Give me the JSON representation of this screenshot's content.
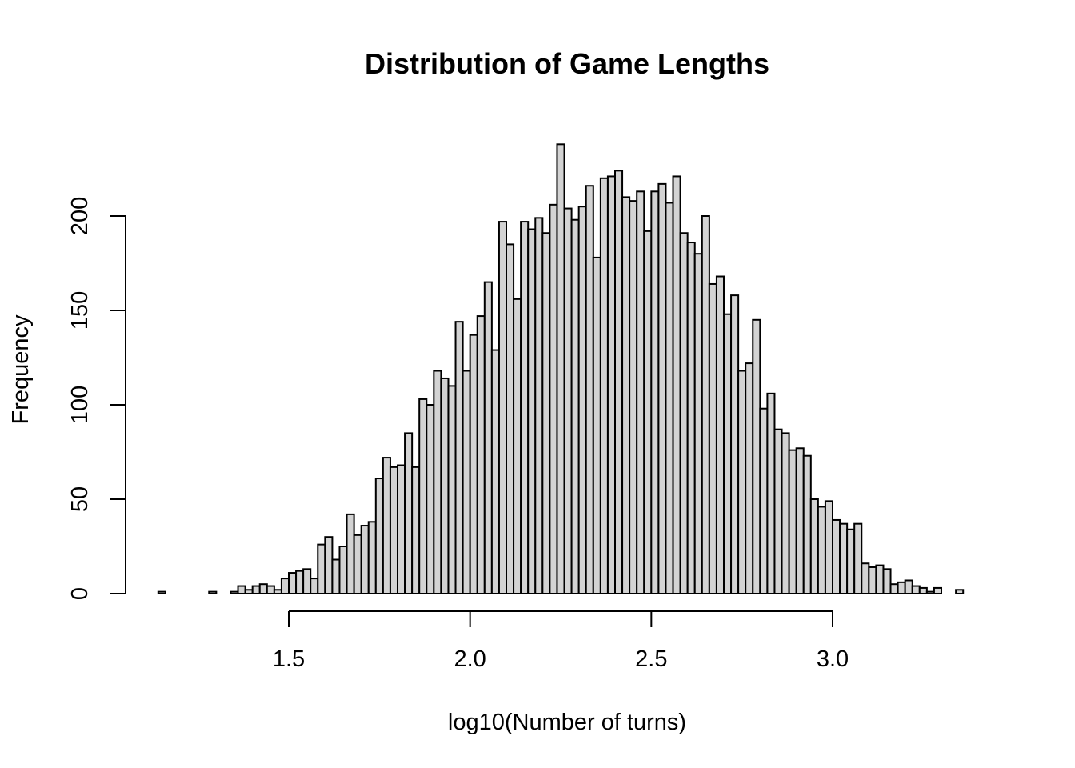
{
  "chart_data": {
    "type": "bar",
    "title": "Distribution of Game Lengths",
    "xlabel": "log10(Number of turns)",
    "ylabel": "Frequency",
    "bar_color": "#d3d3d3",
    "edge_color": "#000000",
    "xlim": [
      1.15,
      3.4
    ],
    "ylim": [
      0,
      240
    ],
    "bin_width": 0.02,
    "x_start": 1.14,
    "x_ticks": [
      "1.5",
      "2.0",
      "2.5",
      "3.0"
    ],
    "y_ticks": [
      "0",
      "50",
      "100",
      "150",
      "200"
    ],
    "values": [
      1,
      0,
      0,
      0,
      0,
      0,
      0,
      1,
      0,
      0,
      1,
      4,
      2,
      4,
      5,
      4,
      2,
      8,
      11,
      12,
      13,
      8,
      26,
      30,
      18,
      25,
      42,
      31,
      36,
      38,
      61,
      72,
      67,
      68,
      85,
      67,
      103,
      100,
      118,
      114,
      110,
      144,
      118,
      137,
      147,
      165,
      129,
      197,
      185,
      156,
      197,
      193,
      199,
      191,
      206,
      238,
      204,
      198,
      205,
      216,
      178,
      220,
      221,
      224,
      210,
      208,
      213,
      192,
      213,
      217,
      207,
      221,
      191,
      186,
      180,
      200,
      164,
      168,
      148,
      158,
      118,
      122,
      145,
      98,
      106,
      87,
      85,
      76,
      77,
      73,
      50,
      46,
      49,
      39,
      37,
      34,
      37,
      16,
      14,
      15,
      13,
      5,
      6,
      7,
      4,
      3,
      1,
      3,
      0,
      0,
      2
    ]
  }
}
